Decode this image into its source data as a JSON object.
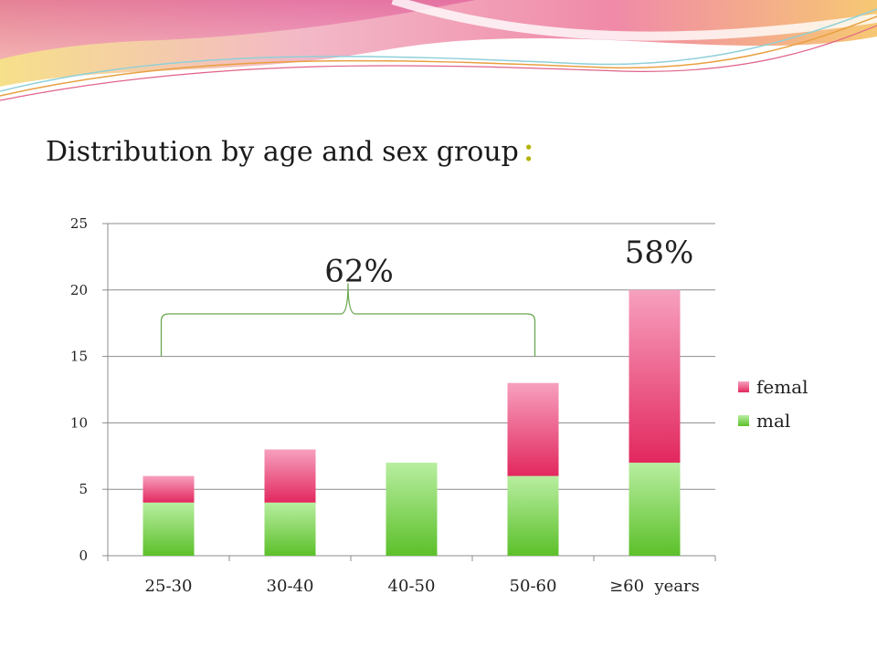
{
  "slide": {
    "title": "Distribution by age and sex group",
    "title_suffix": ":"
  },
  "colors": {
    "femal": "#e8336a",
    "mal": "#6cc93a",
    "bracket": "#6aa84f",
    "banner_pink": "#e85a8a",
    "banner_yellow": "#f7c873"
  },
  "chart_data": {
    "type": "bar",
    "stacked": true,
    "categories": [
      "25-30",
      "30-40",
      "40-50",
      "50-60",
      "≥60  years"
    ],
    "series": [
      {
        "name": "mal",
        "values": [
          4,
          4,
          7,
          6,
          7
        ]
      },
      {
        "name": "femal",
        "values": [
          2,
          4,
          0,
          7,
          13
        ]
      }
    ],
    "ylim": [
      0,
      25
    ],
    "yticks": [
      0,
      5,
      10,
      15,
      20,
      25
    ],
    "grid": true,
    "legend": "right",
    "legend_order": [
      "femal",
      "mal"
    ],
    "annotations": [
      {
        "text": "62%",
        "type": "bracket",
        "from_category": 0,
        "to_category": 3
      },
      {
        "text": "58%",
        "type": "label",
        "category": 4
      }
    ]
  }
}
